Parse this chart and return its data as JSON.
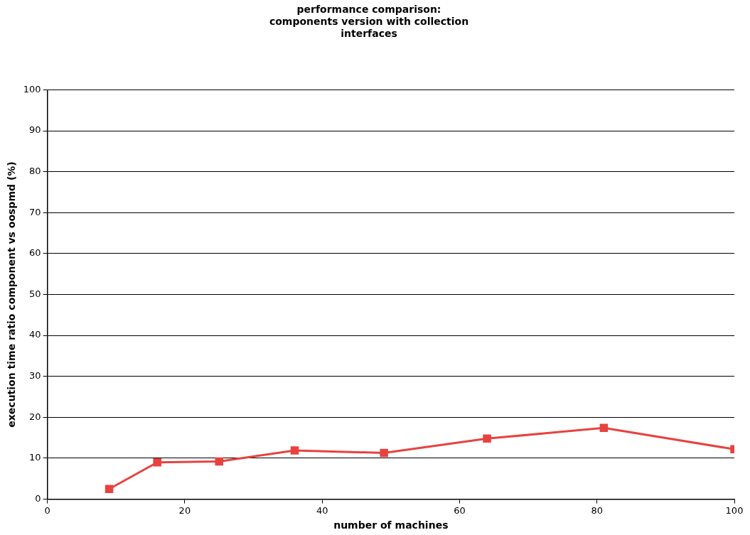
{
  "chart_data": {
    "type": "line",
    "title": "performance comparison:\ncomponents version with collection\ninterfaces",
    "xlabel": "number of machines",
    "ylabel": "execution time ratio component vs oospmd (%)",
    "x": [
      9,
      16,
      25,
      36,
      49,
      64,
      81,
      100
    ],
    "series": [
      {
        "color": "#e8423f",
        "values": [
          2.5,
          9.0,
          9.2,
          11.9,
          11.3,
          14.8,
          17.4,
          12.2
        ]
      }
    ],
    "xlim": [
      0,
      100
    ],
    "xticks": [
      0,
      20,
      40,
      60,
      80,
      100
    ],
    "ylim": [
      0,
      100
    ],
    "yticks": [
      0,
      10,
      20,
      30,
      40,
      50,
      60,
      70,
      80,
      90,
      100
    ],
    "grid": "y",
    "marker": "square",
    "line_style": "solid",
    "legend": false
  }
}
